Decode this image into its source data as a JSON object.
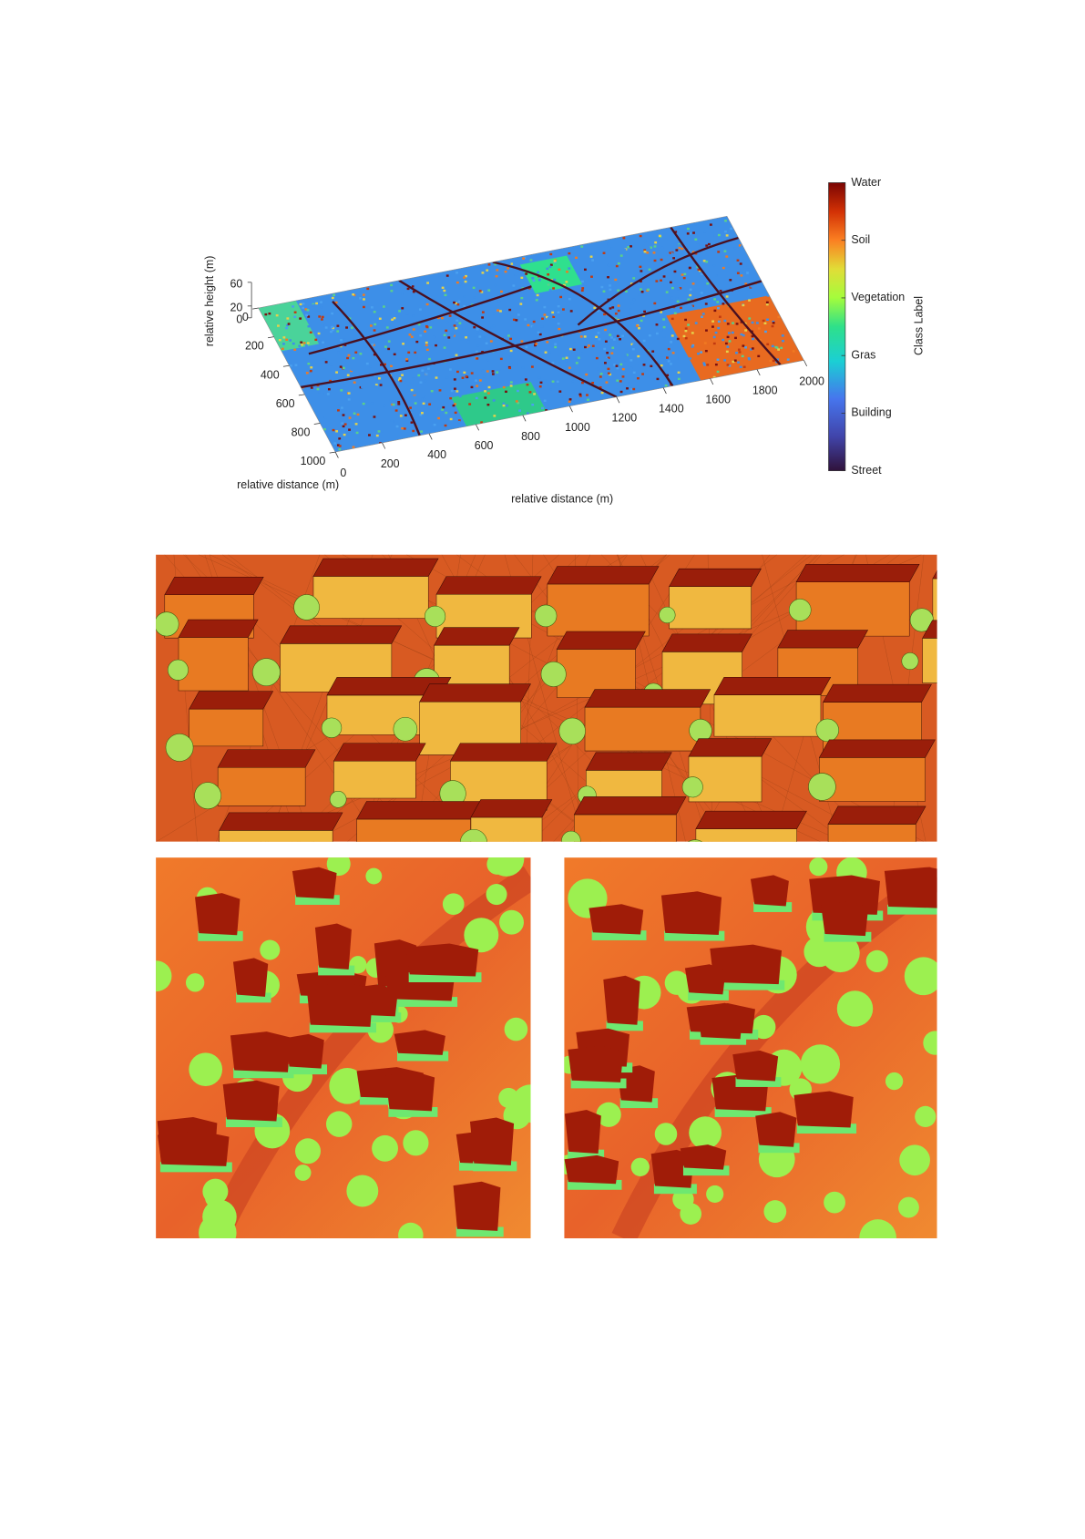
{
  "figure": {
    "plot": {
      "z_label": "relative height (m)",
      "y_label": "relative distance (m)",
      "x_label": "relative distance (m)",
      "x_ticks": [
        0,
        200,
        400,
        600,
        800,
        1000,
        1200,
        1400,
        1600,
        1800,
        2000
      ],
      "y_ticks": [
        0,
        200,
        400,
        600,
        800,
        1000
      ],
      "z_ticks": [
        0,
        20,
        60
      ],
      "colorbar": {
        "label": "Class Label",
        "classes": [
          "Street",
          "Building",
          "Gras",
          "Vegetation",
          "Soil",
          "Water"
        ]
      }
    }
  }
}
